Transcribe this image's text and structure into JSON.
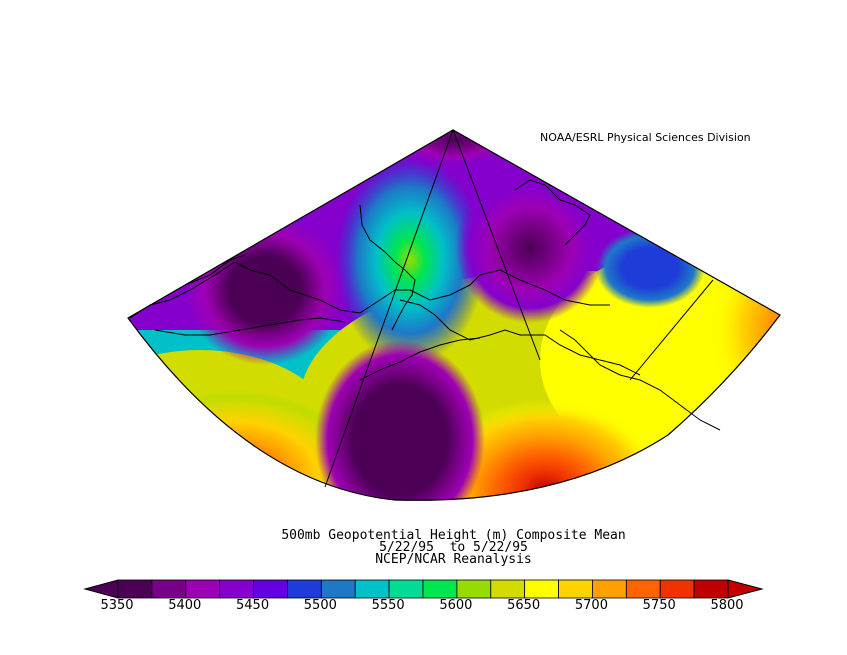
{
  "credit": "NOAA/ESRL Physical Sciences Division",
  "title": {
    "line1": "500mb Geopotential Height (m) Composite Mean",
    "line2": "5/22/95  to 5/22/95",
    "line3": "NCEP/NCAR Reanalysis"
  },
  "colorbar": {
    "labels": [
      "5350",
      "5400",
      "5450",
      "5500",
      "5550",
      "5600",
      "5650",
      "5700",
      "5750",
      "5800"
    ],
    "colors": [
      "#4b0055",
      "#780086",
      "#9d00b4",
      "#8500cc",
      "#6400e0",
      "#1e3cd8",
      "#1e78c8",
      "#00c0c8",
      "#00dc96",
      "#00e650",
      "#96dc00",
      "#d2dc00",
      "#ffff00",
      "#ffd200",
      "#ffa000",
      "#ff6400",
      "#f03200",
      "#c00000"
    ]
  },
  "map": {
    "palette": {
      "low_dark": "#4b0055",
      "low_mid": "#9d00b4",
      "purple": "#8500cc",
      "blue": "#1e3cd8",
      "cyan": "#00c0c8",
      "green": "#00e650",
      "yellow": "#ffff00",
      "orange": "#ffa000",
      "red": "#f03200"
    }
  }
}
